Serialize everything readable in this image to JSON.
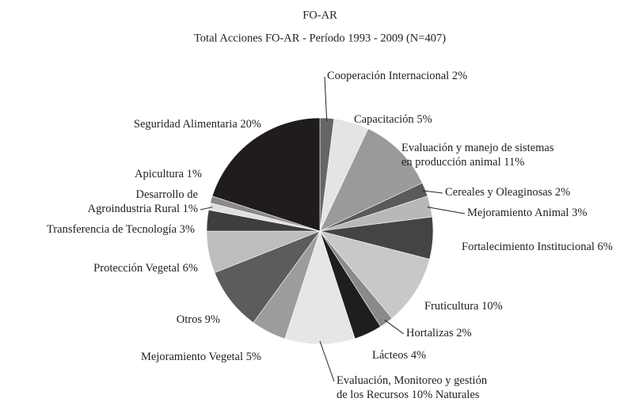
{
  "chart_data": {
    "type": "pie",
    "title": "FO-AR",
    "subtitle": "Total Acciones FO-AR - Período 1993 - 2009 (N=407)",
    "categories": [
      [
        "Cooperación Internacional"
      ],
      [
        "Capacitación"
      ],
      [
        "Evaluación y manejo de sistemas",
        "en producción animal"
      ],
      [
        "Cereales y Oleaginosas"
      ],
      [
        "Mejoramiento Animal"
      ],
      [
        "Fortalecimiento Institucional"
      ],
      [
        "Fruticultura"
      ],
      [
        "Hortalizas"
      ],
      [
        "Lácteos"
      ],
      [
        "Evaluación, Monitoreo y gestión",
        "de los Recursos",
        "Naturales"
      ],
      [
        "Mejoramiento Vegetal"
      ],
      [
        "Otros"
      ],
      [
        "Protección Vegetal"
      ],
      [
        "Transferencia de Tecnología"
      ],
      [
        "Desarrollo de",
        "Agroindustria Rural"
      ],
      [
        "Apicultura"
      ],
      [
        "Seguridad Alimentaria"
      ]
    ],
    "values": [
      2,
      5,
      11,
      2,
      3,
      6,
      10,
      2,
      4,
      10,
      5,
      9,
      6,
      3,
      1,
      1,
      20
    ],
    "value_labels": [
      "2%",
      "5%",
      "11%",
      "2%",
      "3%",
      "6%",
      "10%",
      "2%",
      "4%",
      "10%",
      "5%",
      "9%",
      "6%",
      "3%",
      "1%",
      "1%",
      "20%"
    ],
    "colors": [
      "#666666",
      "#e4e4e4",
      "#9a9a9a",
      "#5a5a5a",
      "#b8b8b8",
      "#444444",
      "#c8c8c8",
      "#8a8a8a",
      "#1e1e1e",
      "#e6e6e6",
      "#9c9c9c",
      "#5c5c5c",
      "#bdbdbd",
      "#3e3e3e",
      "#e0e0e0",
      "#8a8a8a",
      "#201c1d"
    ]
  }
}
